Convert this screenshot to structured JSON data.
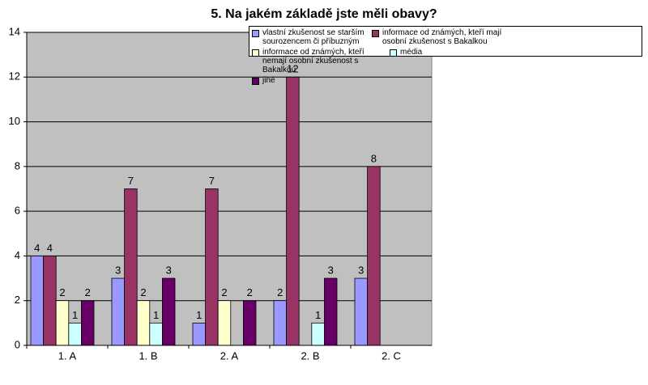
{
  "chart_data": {
    "type": "bar",
    "title": "5. Na jakém základě jste měli obavy?",
    "categories": [
      "1. A",
      "1. B",
      "2. A",
      "2. B",
      "2. C"
    ],
    "series": [
      {
        "name": "vlastní zkušenost se starším sourozencem či příbuzným",
        "color": "#9999ff",
        "values": [
          4,
          3,
          1,
          2,
          3
        ]
      },
      {
        "name": "informace od známých, kteří mají osobní zkušenost s Bakalkou",
        "color": "#993366",
        "values": [
          4,
          7,
          7,
          12,
          8
        ]
      },
      {
        "name": "informace od známých, kteří nemají osobní zkušenost s Bakalkou",
        "color": "#ffffcc",
        "values": [
          2,
          2,
          2,
          null,
          null
        ]
      },
      {
        "name": "média",
        "color": "#ccffff",
        "values": [
          1,
          1,
          null,
          1,
          null
        ]
      },
      {
        "name": "jiné",
        "color": "#660066",
        "values": [
          2,
          3,
          2,
          3,
          null
        ]
      }
    ],
    "ylim": [
      0,
      14
    ],
    "yticks": [
      0,
      2,
      4,
      6,
      8,
      10,
      12,
      14
    ],
    "grid": true
  }
}
